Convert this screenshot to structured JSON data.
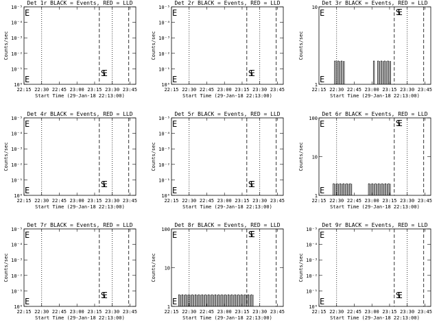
{
  "chart_data": [
    {
      "type": "line",
      "title": "Det 1r BLACK = Events, RED = LLD",
      "xlabel": "Start Time (29-Jan-18 22:13:00)",
      "ylabel": "Counts/sec",
      "yscale": "log",
      "ylim": [
        1,
        100000
      ],
      "yticks": [
        "10⁰",
        "10⁻¹",
        "10⁻²",
        "10⁻³",
        "10⁻⁴",
        "10⁻⁵"
      ],
      "xticks": [
        "22:15",
        "22:30",
        "22:45",
        "23:00",
        "23:15",
        "23:30",
        "23:45"
      ],
      "markers": {
        "E": "E",
        "S": "S"
      },
      "series": []
    },
    {
      "type": "line",
      "title": "Det 2r BLACK = Events, RED = LLD",
      "xlabel": "Start Time (29-Jan-18 22:13:00)",
      "ylabel": "Counts/sec",
      "yscale": "log",
      "ylim": [
        1,
        100000
      ],
      "yticks": [
        "10⁰",
        "10⁻¹",
        "10⁻²",
        "10⁻³",
        "10⁻⁴",
        "10⁻⁵"
      ],
      "xticks": [
        "22:15",
        "22:30",
        "22:45",
        "23:00",
        "23:15",
        "23:30",
        "23:45"
      ],
      "markers": {
        "E": "E",
        "S": "S"
      },
      "series": []
    },
    {
      "type": "line",
      "title": "Det 3r BLACK = Events, RED = LLD",
      "xlabel": "Start Time (29-Jan-18 22:13:00)",
      "ylabel": "Counts/sec",
      "yscale": "log",
      "ylim": [
        1,
        10
      ],
      "yticks": [
        "1",
        "10"
      ],
      "xticks": [
        "22:15",
        "22:30",
        "22:45",
        "23:00",
        "23:15",
        "23:30",
        "23:45"
      ],
      "markers": {
        "E": "E",
        "S": "S"
      },
      "series": [
        {
          "segments": [
            [
              22.47,
              22.62
            ],
            [
              23.02,
              23.05
            ],
            [
              23.08,
              23.27
            ]
          ],
          "level": 2
        }
      ]
    },
    {
      "type": "line",
      "title": "Det 4r BLACK = Events, RED = LLD",
      "xlabel": "Start Time (29-Jan-18 22:13:00)",
      "ylabel": "Counts/sec",
      "yscale": "log",
      "ylim": [
        1,
        100000
      ],
      "yticks": [
        "10⁰",
        "10⁻¹",
        "10⁻²",
        "10⁻³",
        "10⁻⁴",
        "10⁻⁵"
      ],
      "xticks": [
        "22:15",
        "22:30",
        "22:45",
        "23:00",
        "23:15",
        "23:30",
        "23:45"
      ],
      "markers": {
        "E": "E",
        "S": "S"
      },
      "series": []
    },
    {
      "type": "line",
      "title": "Det 5r BLACK = Events, RED = LLD",
      "xlabel": "Start Time (29-Jan-18 22:13:00)",
      "ylabel": "Counts/sec",
      "yscale": "log",
      "ylim": [
        1,
        100000
      ],
      "yticks": [
        "10⁰",
        "10⁻¹",
        "10⁻²",
        "10⁻³",
        "10⁻⁴",
        "10⁻⁵"
      ],
      "xticks": [
        "22:15",
        "22:30",
        "22:45",
        "23:00",
        "23:15",
        "23:30",
        "23:45"
      ],
      "markers": {
        "E": "E",
        "S": "S"
      },
      "series": []
    },
    {
      "type": "line",
      "title": "Det 6r BLACK = Events, RED = LLD",
      "xlabel": "Start Time (29-Jan-18 22:13:00)",
      "ylabel": "Counts/sec",
      "yscale": "log",
      "ylim": [
        1,
        100
      ],
      "yticks": [
        "1",
        "10",
        "100"
      ],
      "xticks": [
        "22:15",
        "22:30",
        "22:45",
        "23:00",
        "23:15",
        "23:30",
        "23:45"
      ],
      "markers": {
        "E": "E",
        "S": "S"
      },
      "series": [
        {
          "segments": [
            [
              22.45,
              22.72
            ],
            [
              22.95,
              23.27
            ]
          ],
          "level": 2
        }
      ]
    },
    {
      "type": "line",
      "title": "Det 7r BLACK = Events, RED = LLD",
      "xlabel": "Start Time (29-Jan-18 22:13:00)",
      "ylabel": "Counts/sec",
      "yscale": "log",
      "ylim": [
        1,
        100000
      ],
      "yticks": [
        "10⁰",
        "10⁻¹",
        "10⁻²",
        "10⁻³",
        "10⁻⁴",
        "10⁻⁵"
      ],
      "xticks": [
        "22:15",
        "22:30",
        "22:45",
        "23:00",
        "23:15",
        "23:30",
        "23:45"
      ],
      "markers": {
        "E": "E",
        "S": "S"
      },
      "series": []
    },
    {
      "type": "line",
      "title": "Det 8r BLACK = Events, RED = LLD",
      "xlabel": "Start Time (29-Jan-18 22:13:00)",
      "ylabel": "Counts/sec",
      "yscale": "log",
      "ylim": [
        1,
        100
      ],
      "yticks": [
        "1",
        "10",
        "100"
      ],
      "xticks": [
        "22:15",
        "22:30",
        "22:45",
        "23:00",
        "23:15",
        "23:30",
        "23:45"
      ],
      "markers": {
        "E": "E",
        "S": "S"
      },
      "series": [
        {
          "segments": [
            [
              22.35,
              23.42
            ]
          ],
          "level": 2
        }
      ]
    },
    {
      "type": "line",
      "title": "Det 9r BLACK = Events, RED = LLD",
      "xlabel": "Start Time (29-Jan-18 22:13:00)",
      "ylabel": "Counts/sec",
      "yscale": "log",
      "ylim": [
        1,
        100000
      ],
      "yticks": [
        "10⁰",
        "10⁻¹",
        "10⁻²",
        "10⁻³",
        "10⁻⁴",
        "10⁻⁵"
      ],
      "xticks": [
        "22:15",
        "22:30",
        "22:45",
        "23:00",
        "23:15",
        "23:30",
        "23:45"
      ],
      "markers": {
        "E": "E",
        "S": "S"
      },
      "series": []
    }
  ]
}
